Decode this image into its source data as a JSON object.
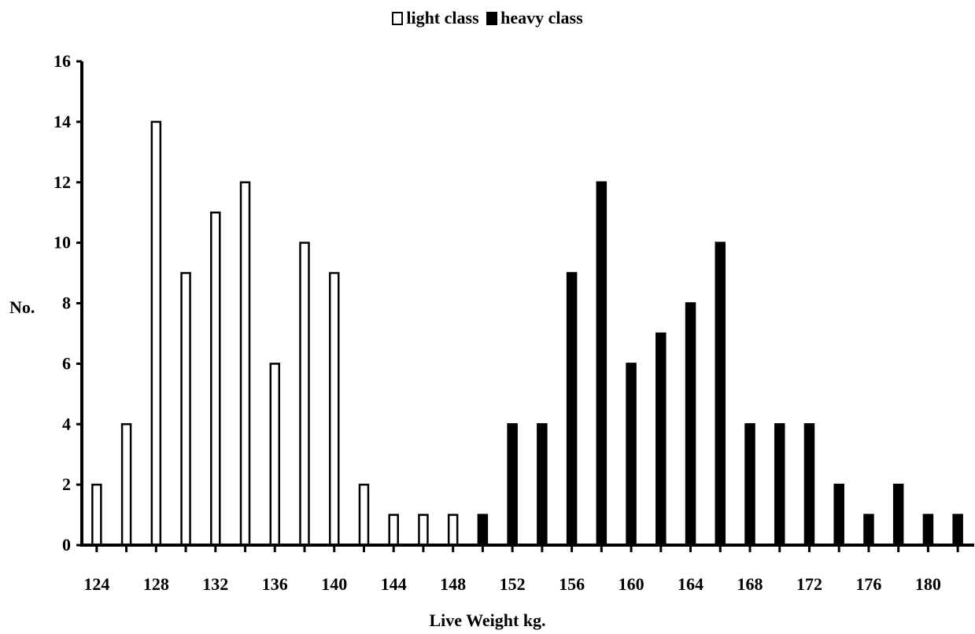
{
  "chart_data": {
    "type": "bar",
    "title": "",
    "xlabel": "Live Weight kg.",
    "ylabel": "No.",
    "ylim": [
      0,
      16
    ],
    "yticks": [
      0,
      2,
      4,
      6,
      8,
      10,
      12,
      14,
      16
    ],
    "xlim": [
      123,
      183
    ],
    "xticks": [
      124,
      128,
      132,
      136,
      140,
      144,
      148,
      152,
      156,
      160,
      164,
      168,
      172,
      176,
      180
    ],
    "grid": false,
    "legend_position": "top-center",
    "legend": [
      "light class",
      "heavy class"
    ],
    "series": [
      {
        "name": "light class",
        "fill": "#ffffff",
        "x": [
          124,
          126,
          128,
          130,
          132,
          134,
          136,
          138,
          140,
          142,
          144,
          146,
          148
        ],
        "values": [
          2,
          4,
          14,
          9,
          11,
          12,
          6,
          10,
          9,
          2,
          1,
          1,
          1
        ]
      },
      {
        "name": "heavy class",
        "fill": "#000000",
        "x": [
          150,
          152,
          154,
          156,
          158,
          160,
          162,
          164,
          166,
          168,
          170,
          172,
          174,
          176,
          178,
          180,
          182
        ],
        "values": [
          1,
          4,
          4,
          9,
          12,
          6,
          7,
          8,
          10,
          4,
          4,
          4,
          2,
          1,
          2,
          1,
          1
        ]
      }
    ]
  }
}
